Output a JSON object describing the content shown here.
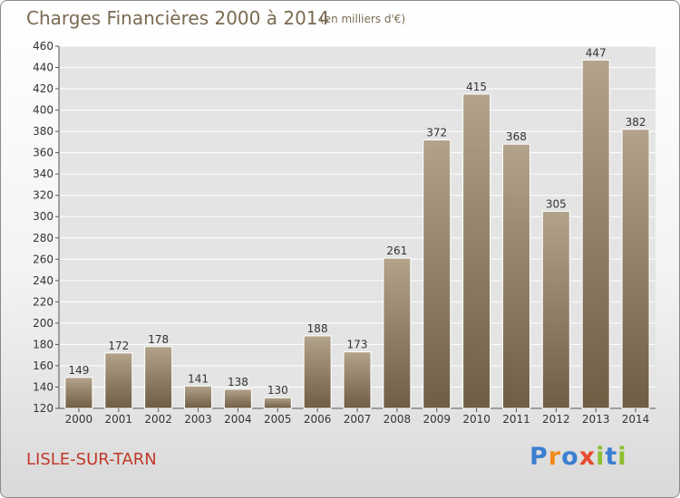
{
  "header": {
    "title": "Charges Financières 2000 à 2014",
    "subtitle": "(en milliers d'€)"
  },
  "footer": {
    "commune": "LISLE-SUR-TARN",
    "brand": "Proxiti",
    "brand_letters": [
      {
        "ch": "P",
        "color": "#3a7fd0"
      },
      {
        "ch": "r",
        "color": "#f08a1c"
      },
      {
        "ch": "o",
        "color": "#3a7fd0"
      },
      {
        "ch": "x",
        "color": "#e64b2e"
      },
      {
        "ch": "i",
        "color": "#8dbf2e"
      },
      {
        "ch": "t",
        "color": "#3a7fd0"
      },
      {
        "ch": "i",
        "color": "#8dbf2e"
      }
    ]
  },
  "colors": {
    "bar_top": "#b3a38b",
    "bar_bottom": "#6f5d44",
    "title": "#7a6a52",
    "commune": "#c0392b",
    "plot_bg": "#e4e4e4",
    "grid": "#ffffff"
  },
  "chart_data": {
    "type": "bar",
    "title": "Charges Financières 2000 à 2014",
    "subtitle": "(en milliers d'€)",
    "categories": [
      "2000",
      "2001",
      "2002",
      "2003",
      "2004",
      "2005",
      "2006",
      "2007",
      "2008",
      "2009",
      "2010",
      "2011",
      "2012",
      "2013",
      "2014"
    ],
    "values": [
      149,
      172,
      178,
      141,
      138,
      130,
      188,
      173,
      261,
      372,
      415,
      368,
      305,
      447,
      382
    ],
    "ylim": [
      120,
      460
    ],
    "yticks": [
      120,
      140,
      160,
      180,
      200,
      220,
      240,
      260,
      280,
      300,
      320,
      340,
      360,
      380,
      400,
      420,
      440,
      460
    ],
    "grid": true,
    "xlabel": "",
    "ylabel": ""
  }
}
